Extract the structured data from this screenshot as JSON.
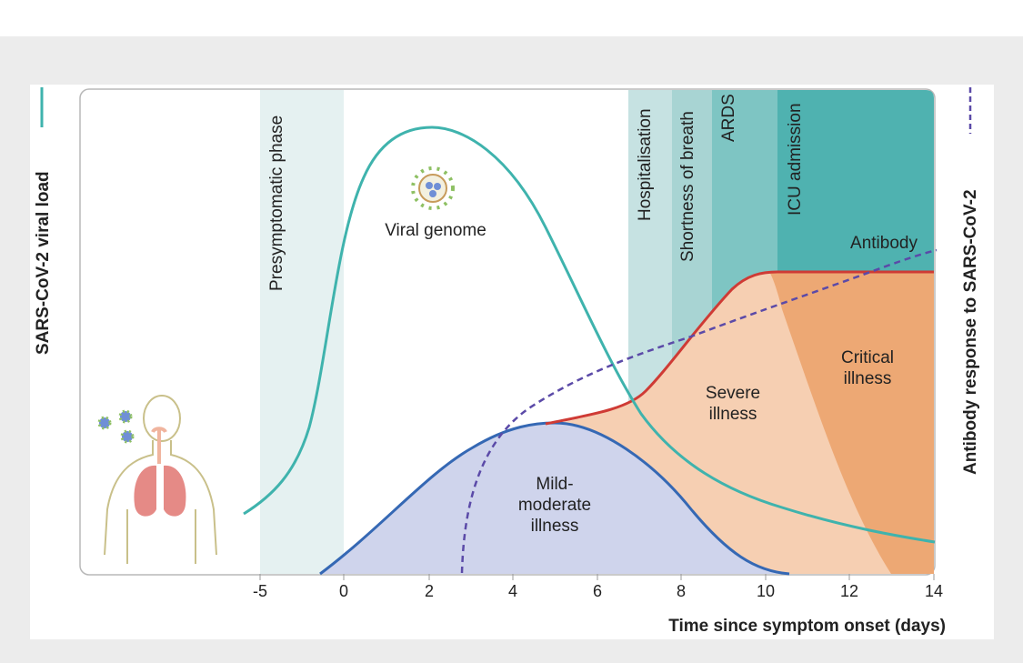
{
  "figure": {
    "left_axis_title": "SARS-CoV-2 viral load",
    "right_axis_title": "Antibody response to SARS-CoV-2",
    "x_axis_title": "Time since symptom onset (days)",
    "x_ticks": [
      "-5",
      "0",
      "2",
      "4",
      "6",
      "8",
      "10",
      "12",
      "14"
    ],
    "phases": [
      "Presymptomatic phase",
      "Hospitalisation",
      "Shortness of breath",
      "ARDS",
      "ICU admission"
    ],
    "labels": {
      "viral_genome": "Viral genome",
      "antibody": "Antibody",
      "mild_1": "Mild-",
      "mild_2": "moderate",
      "mild_3": "illness",
      "severe_1": "Severe",
      "severe_2": "illness",
      "critical_1": "Critical",
      "critical_2": "illness"
    },
    "colors": {
      "viral_load": "#3fb3ad",
      "antibody": "#5b4aa8",
      "mild_fill": "#cfd4ec",
      "mild_edge": "#3568b4",
      "severe_fill": "#f6cfb2",
      "critical_fill": "#eda874",
      "red_edge": "#cf3b35"
    }
  }
}
